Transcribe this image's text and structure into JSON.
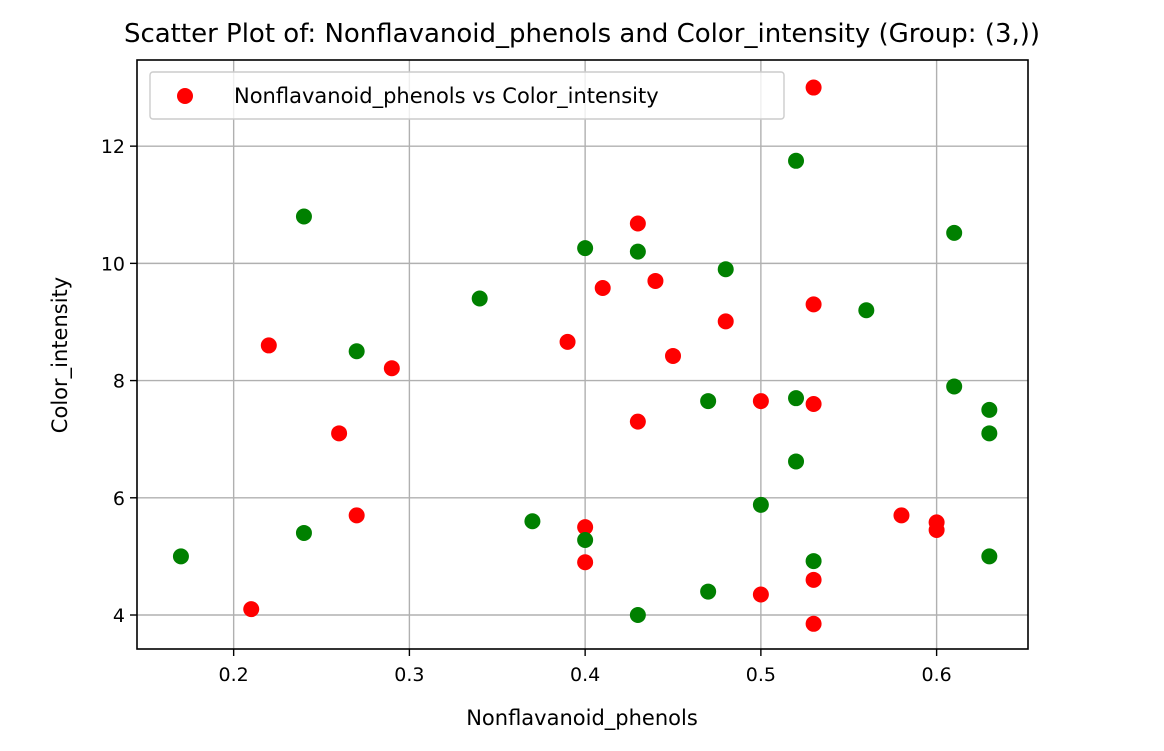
{
  "chart_data": {
    "type": "scatter",
    "title": "Scatter Plot of: Nonflavanoid_phenols and Color_intensity (Group: (3,))",
    "xlabel": "Nonflavanoid_phenols",
    "ylabel": "Color_intensity",
    "xlim": [
      0.145,
      0.652
    ],
    "ylim": [
      3.42,
      13.47
    ],
    "x_ticks": [
      0.2,
      0.3,
      0.4,
      0.5,
      0.6
    ],
    "x_tick_labels": [
      "0.2",
      "0.3",
      "0.4",
      "0.5",
      "0.6"
    ],
    "y_ticks": [
      4,
      6,
      8,
      10,
      12
    ],
    "y_tick_labels": [
      "4",
      "6",
      "8",
      "10",
      "12"
    ],
    "grid": true,
    "legend_position": "top-left",
    "series": [
      {
        "name": "Nonflavanoid_phenols vs Color_intensity",
        "color": "#ff0000",
        "points": [
          [
            0.53,
            13.0
          ],
          [
            0.43,
            10.68
          ],
          [
            0.41,
            9.58
          ],
          [
            0.44,
            9.7
          ],
          [
            0.53,
            9.3
          ],
          [
            0.48,
            9.01
          ],
          [
            0.22,
            8.6
          ],
          [
            0.39,
            8.66
          ],
          [
            0.45,
            8.42
          ],
          [
            0.29,
            8.21
          ],
          [
            0.43,
            7.3
          ],
          [
            0.26,
            7.1
          ],
          [
            0.5,
            7.65
          ],
          [
            0.53,
            7.6
          ],
          [
            0.27,
            5.7
          ],
          [
            0.58,
            5.7
          ],
          [
            0.6,
            5.58
          ],
          [
            0.6,
            5.45
          ],
          [
            0.4,
            5.5
          ],
          [
            0.4,
            4.9
          ],
          [
            0.53,
            4.6
          ],
          [
            0.5,
            4.35
          ],
          [
            0.21,
            4.1
          ],
          [
            0.53,
            3.85
          ]
        ]
      },
      {
        "color": "#008000",
        "points": [
          [
            0.52,
            11.75
          ],
          [
            0.24,
            10.8
          ],
          [
            0.4,
            10.26
          ],
          [
            0.43,
            10.2
          ],
          [
            0.61,
            10.52
          ],
          [
            0.48,
            9.9
          ],
          [
            0.34,
            9.4
          ],
          [
            0.56,
            9.2
          ],
          [
            0.27,
            8.5
          ],
          [
            0.61,
            7.9
          ],
          [
            0.47,
            7.65
          ],
          [
            0.52,
            7.7
          ],
          [
            0.63,
            7.5
          ],
          [
            0.63,
            7.1
          ],
          [
            0.52,
            6.62
          ],
          [
            0.5,
            5.88
          ],
          [
            0.37,
            5.6
          ],
          [
            0.24,
            5.4
          ],
          [
            0.4,
            5.28
          ],
          [
            0.17,
            5.0
          ],
          [
            0.63,
            5.0
          ],
          [
            0.53,
            4.92
          ],
          [
            0.47,
            4.4
          ],
          [
            0.43,
            4.0
          ]
        ]
      }
    ]
  }
}
